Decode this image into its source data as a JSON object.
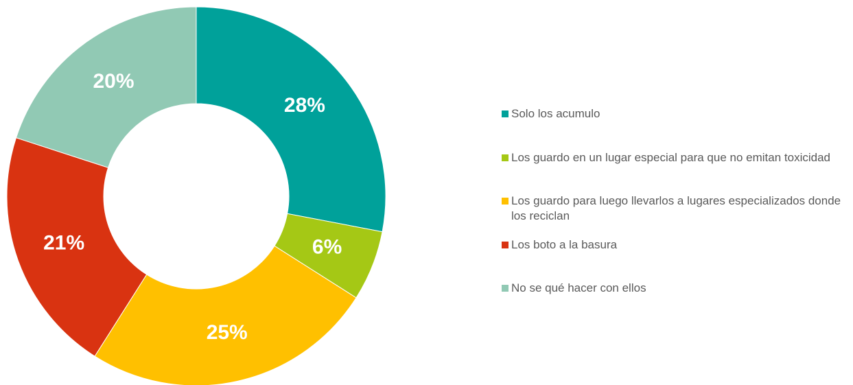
{
  "chart_data": {
    "type": "donut",
    "categories": [
      "Solo los acumulo",
      "Los guardo en un lugar especial para que no emitan toxicidad",
      "Los guardo para luego llevarlos a lugares especializados donde los reciclan",
      "Los boto a la basura",
      "No se qué hacer con ellos"
    ],
    "values": [
      28,
      6,
      25,
      21,
      20
    ],
    "value_labels": [
      "28%",
      "6%",
      "25%",
      "21%",
      "20%"
    ],
    "colors": [
      "#00a19a",
      "#a5c815",
      "#ffc000",
      "#d93311",
      "#91c9b4"
    ],
    "legend": "right"
  }
}
